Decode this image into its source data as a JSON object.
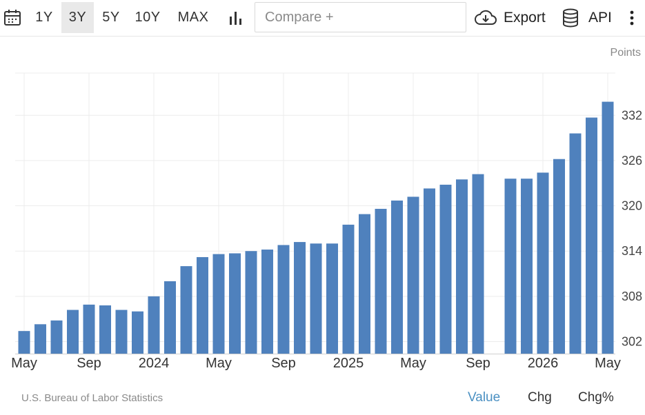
{
  "toolbar": {
    "calendar_icon": "calendar-icon",
    "ranges": [
      "1Y",
      "3Y",
      "5Y",
      "10Y",
      "MAX"
    ],
    "active_range": "3Y",
    "chart_type_icon": "bar-chart-icon",
    "compare_placeholder": "Compare +",
    "export_label": "Export",
    "export_icon": "cloud-download-icon",
    "api_label": "API",
    "api_icon": "database-icon",
    "more_icon": "more-vertical-icon"
  },
  "units_label": "Points",
  "source_label": "U.S. Bureau of Labor Statistics",
  "modes": [
    "Value",
    "Chg",
    "Chg%"
  ],
  "active_mode": "Value",
  "colors": {
    "bar": "#4f81bd",
    "accent": "#4a90c2",
    "grid": "#ececec"
  },
  "chart_data": {
    "type": "bar",
    "x": [
      "2023-05",
      "2023-06",
      "2023-07",
      "2023-08",
      "2023-09",
      "2023-10",
      "2023-11",
      "2023-12",
      "2024-01",
      "2024-02",
      "2024-03",
      "2024-04",
      "2024-05",
      "2024-06",
      "2024-07",
      "2024-08",
      "2024-09",
      "2024-10",
      "2024-11",
      "2024-12",
      "2025-01",
      "2025-02",
      "2025-03",
      "2025-04",
      "2025-05",
      "2025-06",
      "2025-07",
      "2025-08",
      "2025-09",
      "2025-10",
      "2025-11",
      "2025-12",
      "2026-01",
      "2026-02",
      "2026-03",
      "2026-04",
      "2026-05"
    ],
    "values": [
      303.4,
      304.3,
      304.8,
      306.2,
      306.9,
      306.8,
      306.2,
      306.0,
      308.0,
      310.0,
      312.0,
      313.2,
      313.6,
      313.7,
      314.0,
      314.2,
      314.8,
      315.2,
      315.0,
      315.0,
      317.5,
      318.9,
      319.6,
      320.7,
      321.2,
      322.3,
      322.8,
      323.5,
      324.2,
      null,
      323.6,
      323.6,
      324.4,
      326.2,
      329.6,
      331.7,
      333.8
    ],
    "x_tick_labels": [
      "May",
      "Sep",
      "2024",
      "May",
      "Sep",
      "2025",
      "May",
      "Sep",
      "2026",
      "May"
    ],
    "y_ticks": [
      302,
      308,
      314,
      320,
      326,
      332
    ],
    "ylim": [
      300.4,
      337.6
    ],
    "grid": true
  }
}
